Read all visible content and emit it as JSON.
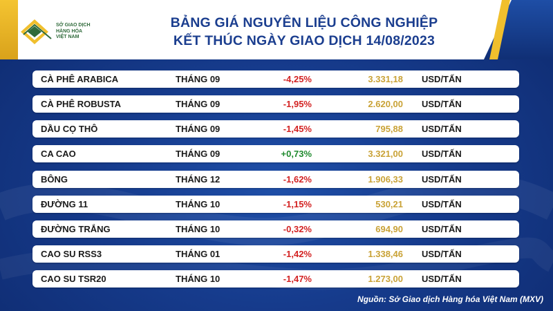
{
  "header": {
    "logo_lines": [
      "SỞ GIAO DỊCH",
      "HÀNG HÓA",
      "VIỆT NAM"
    ],
    "title_line1": "BẢNG GIÁ NGUYÊN LIỆU CÔNG NGHIỆP",
    "title_line2": "KẾT THÚC NGÀY GIAO DỊCH 14/08/2023"
  },
  "colors": {
    "brand_blue": "#1b3e8f",
    "accent_gold": "#f0bf2d",
    "negative_red": "#d32222",
    "positive_green": "#1f8a2e",
    "price_gold": "#c9a236"
  },
  "rows": [
    {
      "name": "CÀ PHÊ ARABICA",
      "month": "THÁNG 09",
      "change": "-4,25%",
      "price": "3.331,18",
      "unit": "USD/TẤN",
      "direction": "down"
    },
    {
      "name": "CÀ PHÊ ROBUSTA",
      "month": "THÁNG 09",
      "change": "-1,95%",
      "price": "2.620,00",
      "unit": "USD/TẤN",
      "direction": "down"
    },
    {
      "name": "DẦU CỌ THÔ",
      "month": "THÁNG 09",
      "change": "-1,45%",
      "price": "795,88",
      "unit": "USD/TẤN",
      "direction": "down"
    },
    {
      "name": "CA CAO",
      "month": "THÁNG 09",
      "change": "+0,73%",
      "price": "3.321,00",
      "unit": "USD/TẤN",
      "direction": "up"
    },
    {
      "name": "BÔNG",
      "month": "THÁNG 12",
      "change": "-1,62%",
      "price": "1.906,33",
      "unit": "USD/TẤN",
      "direction": "down"
    },
    {
      "name": "ĐƯỜNG 11",
      "month": "THÁNG 10",
      "change": "-1,15%",
      "price": "530,21",
      "unit": "USD/TẤN",
      "direction": "down"
    },
    {
      "name": "ĐƯỜNG TRẮNG",
      "month": "THÁNG 10",
      "change": "-0,32%",
      "price": "694,90",
      "unit": "USD/TẤN",
      "direction": "down"
    },
    {
      "name": "CAO SU RSS3",
      "month": "THÁNG 01",
      "change": "-1,42%",
      "price": "1.338,46",
      "unit": "USD/TẤN",
      "direction": "down"
    },
    {
      "name": "CAO SU TSR20",
      "month": "THÁNG 10",
      "change": "-1,47%",
      "price": "1.273,00",
      "unit": "USD/TẤN",
      "direction": "down"
    }
  ],
  "footer": {
    "source": "Nguồn: Sở Giao dịch Hàng hóa Việt Nam (MXV)"
  }
}
